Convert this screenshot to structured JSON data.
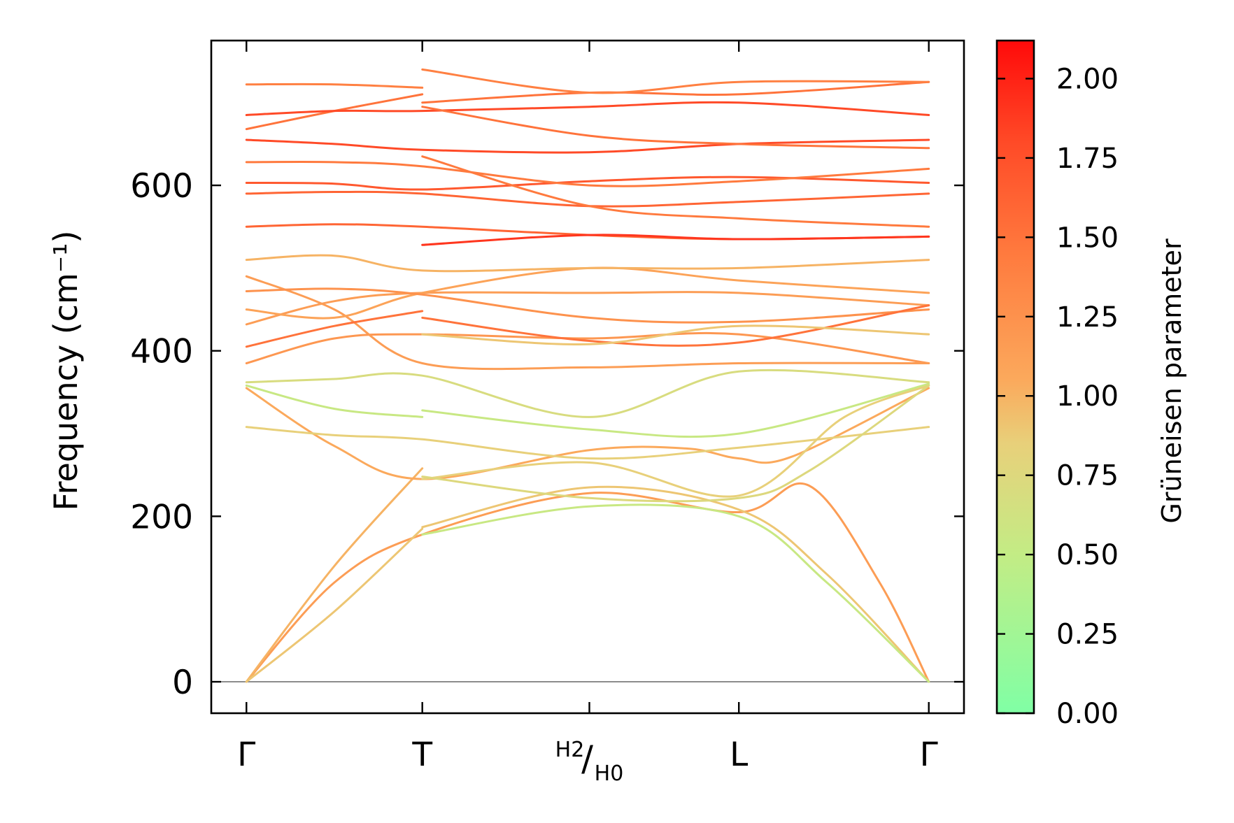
{
  "chart_data": {
    "type": "line",
    "ylabel": "Frequency (cm⁻¹)",
    "ylim": [
      -38,
      775
    ],
    "yticks": [
      0,
      200,
      400,
      600
    ],
    "grid": false,
    "x_ticks": [
      {
        "label": "Γ",
        "pos": 0.0
      },
      {
        "label": "T",
        "pos": 1.0
      },
      {
        "label": "H2/H0",
        "sub_top": "H",
        "sub_top_index": "2",
        "sub_bottom": "H",
        "sub_bottom_index": "0",
        "pos": 1.95
      },
      {
        "label": "L",
        "pos": 2.8
      },
      {
        "label": "Γ",
        "pos": 3.88
      }
    ],
    "xlim": [
      -0.2,
      4.08
    ],
    "zero_line": 0,
    "colorbar": {
      "title": "Grüneisen parameter",
      "min": 0.0,
      "max": 2.12,
      "ticks": [
        "0.00",
        "0.25",
        "0.50",
        "0.75",
        "1.00",
        "1.25",
        "1.50",
        "1.75",
        "2.00"
      ],
      "tick_values": [
        0.0,
        0.25,
        0.5,
        0.75,
        1.0,
        1.25,
        1.5,
        1.75,
        2.0
      ],
      "colormap": [
        {
          "v": 0.0,
          "color": "#80ffa5"
        },
        {
          "v": 0.5,
          "color": "#c3ec85"
        },
        {
          "v": 0.85,
          "color": "#e8d07a"
        },
        {
          "v": 1.05,
          "color": "#fba95c"
        },
        {
          "v": 1.45,
          "color": "#ff7a3e"
        },
        {
          "v": 1.8,
          "color": "#ff4a27"
        },
        {
          "v": 2.12,
          "color": "#ff0a0a"
        }
      ]
    },
    "series": [
      {
        "g": 1.15,
        "segments": [
          [
            [
              0,
              0
            ],
            [
              0.5,
              120
            ],
            [
              1,
              178
            ],
            [
              1.95,
              228
            ],
            [
              2.8,
              205
            ],
            [
              3.2,
              237
            ],
            [
              3.6,
              120
            ],
            [
              3.88,
              0
            ]
          ]
        ]
      },
      {
        "g": 1.0,
        "segments": [
          [
            [
              0,
              0
            ],
            [
              0.5,
              140
            ],
            [
              1,
              258
            ]
          ]
        ]
      },
      {
        "g": 0.9,
        "segments": [
          [
            [
              0,
              0
            ],
            [
              0.5,
              85
            ],
            [
              1,
              185
            ]
          ],
          [
            [
              1,
              187
            ],
            [
              1.95,
              235
            ],
            [
              2.8,
              208
            ],
            [
              3.3,
              130
            ],
            [
              3.88,
              0
            ]
          ]
        ]
      },
      {
        "g": 0.55,
        "segments": [
          [
            [
              1,
              178
            ],
            [
              1.95,
              212
            ],
            [
              2.8,
              200
            ],
            [
              3.3,
              120
            ],
            [
              3.88,
              0
            ]
          ]
        ]
      },
      {
        "g": 1.05,
        "segments": [
          [
            [
              0,
              355
            ],
            [
              0.5,
              285
            ],
            [
              1,
              245
            ],
            [
              1.95,
              280
            ],
            [
              2.5,
              282
            ],
            [
              2.8,
              270
            ],
            [
              3.1,
              272
            ],
            [
              3.88,
              355
            ]
          ]
        ]
      },
      {
        "g": 0.85,
        "segments": [
          [
            [
              0,
              308
            ],
            [
              0.5,
              298
            ],
            [
              1,
              293
            ],
            [
              1.95,
              270
            ],
            [
              2.8,
              283
            ],
            [
              3.88,
              308
            ]
          ]
        ]
      },
      {
        "g": 0.55,
        "segments": [
          [
            [
              0,
              358
            ],
            [
              0.5,
              330
            ],
            [
              1,
              320
            ]
          ],
          [
            [
              1,
              328
            ],
            [
              1.95,
              305
            ],
            [
              2.8,
              300
            ],
            [
              3.88,
              360
            ]
          ]
        ]
      },
      {
        "g": 0.7,
        "segments": [
          [
            [
              0,
              362
            ],
            [
              0.5,
              366
            ],
            [
              1,
              370
            ],
            [
              1.95,
              320
            ],
            [
              2.8,
              375
            ],
            [
              3.88,
              362
            ]
          ]
        ]
      },
      {
        "g": 0.85,
        "segments": [
          [
            [
              1,
              245
            ],
            [
              1.95,
              265
            ],
            [
              2.8,
              225
            ],
            [
              3.4,
              320
            ],
            [
              3.88,
              358
            ]
          ]
        ]
      },
      {
        "g": 0.75,
        "segments": [
          [
            [
              1,
              248
            ],
            [
              1.95,
              222
            ],
            [
              2.8,
              222
            ],
            [
              3.2,
              255
            ],
            [
              3.88,
              358
            ]
          ]
        ]
      },
      {
        "g": 1.2,
        "segments": [
          [
            [
              0,
              385
            ],
            [
              0.5,
              415
            ],
            [
              1,
              420
            ],
            [
              1.95,
              415
            ],
            [
              2.8,
              420
            ],
            [
              3.88,
              385
            ]
          ]
        ]
      },
      {
        "g": 1.15,
        "segments": [
          [
            [
              0,
              490
            ],
            [
              0.5,
              450
            ],
            [
              1,
              385
            ],
            [
              1.95,
              380
            ],
            [
              2.8,
              385
            ],
            [
              3.88,
              385
            ]
          ]
        ]
      },
      {
        "g": 1.15,
        "segments": [
          [
            [
              0,
              432
            ],
            [
              0.5,
              460
            ],
            [
              1,
              470
            ],
            [
              1.95,
              470
            ],
            [
              2.8,
              470
            ],
            [
              3.88,
              455
            ]
          ]
        ]
      },
      {
        "g": 1.1,
        "segments": [
          [
            [
              0,
              450
            ],
            [
              0.5,
              440
            ],
            [
              1,
              470
            ],
            [
              1.95,
              500
            ],
            [
              2.8,
              485
            ],
            [
              3.88,
              470
            ]
          ]
        ]
      },
      {
        "g": 1.25,
        "segments": [
          [
            [
              0,
              472
            ],
            [
              0.5,
              475
            ],
            [
              1,
              468
            ],
            [
              1.95,
              440
            ],
            [
              2.8,
              435
            ],
            [
              3.88,
              450
            ]
          ]
        ]
      },
      {
        "g": 1.5,
        "segments": [
          [
            [
              0,
              405
            ],
            [
              0.5,
              430
            ],
            [
              1,
              448
            ]
          ],
          [
            [
              1,
              440
            ],
            [
              1.95,
              412
            ],
            [
              2.8,
              410
            ],
            [
              3.88,
              455
            ]
          ]
        ]
      },
      {
        "g": 1.0,
        "segments": [
          [
            [
              0,
              510
            ],
            [
              0.5,
              515
            ],
            [
              1,
              497
            ],
            [
              1.95,
              500
            ],
            [
              2.8,
              500
            ],
            [
              3.88,
              510
            ]
          ]
        ]
      },
      {
        "g": 0.9,
        "segments": [
          [
            [
              1,
              420
            ],
            [
              1.95,
              408
            ],
            [
              2.8,
              430
            ],
            [
              3.88,
              420
            ]
          ]
        ]
      },
      {
        "g": 1.6,
        "segments": [
          [
            [
              0,
              550
            ],
            [
              0.5,
              553
            ],
            [
              1,
              550
            ],
            [
              1.95,
              540
            ],
            [
              2.8,
              535
            ],
            [
              3.88,
              538
            ]
          ]
        ]
      },
      {
        "g": 1.9,
        "segments": [
          [
            [
              1,
              528
            ],
            [
              1.95,
              540
            ],
            [
              2.8,
              535
            ],
            [
              3.88,
              538
            ]
          ]
        ]
      },
      {
        "g": 1.6,
        "segments": [
          [
            [
              0,
              590
            ],
            [
              0.5,
              592
            ],
            [
              1,
              590
            ],
            [
              1.95,
              575
            ],
            [
              2.8,
              580
            ],
            [
              3.88,
              590
            ]
          ]
        ]
      },
      {
        "g": 1.7,
        "segments": [
          [
            [
              0,
              603
            ],
            [
              0.5,
              602
            ],
            [
              1,
              595
            ],
            [
              1.95,
              605
            ],
            [
              2.8,
              610
            ],
            [
              3.88,
              603
            ]
          ]
        ]
      },
      {
        "g": 1.45,
        "segments": [
          [
            [
              0,
              628
            ],
            [
              0.5,
              628
            ],
            [
              1,
              623
            ],
            [
              1.95,
              600
            ],
            [
              2.8,
              605
            ],
            [
              3.88,
              620
            ]
          ]
        ]
      },
      {
        "g": 1.45,
        "segments": [
          [
            [
              1,
              635
            ],
            [
              1.95,
              575
            ],
            [
              2.8,
              560
            ],
            [
              3.88,
              550
            ]
          ]
        ]
      },
      {
        "g": 1.8,
        "segments": [
          [
            [
              0,
              655
            ],
            [
              0.5,
              650
            ],
            [
              1,
              643
            ],
            [
              1.95,
              640
            ],
            [
              2.8,
              650
            ],
            [
              3.88,
              655
            ]
          ]
        ]
      },
      {
        "g": 1.5,
        "segments": [
          [
            [
              0,
              668
            ],
            [
              0.5,
              690
            ],
            [
              1,
              710
            ]
          ],
          [
            [
              1,
              700
            ],
            [
              1.95,
              712
            ],
            [
              2.8,
              710
            ],
            [
              3.88,
              725
            ]
          ]
        ]
      },
      {
        "g": 1.8,
        "segments": [
          [
            [
              0,
              685
            ],
            [
              0.5,
              690
            ],
            [
              1,
              690
            ],
            [
              1.95,
              695
            ],
            [
              2.8,
              700
            ],
            [
              3.88,
              685
            ]
          ]
        ]
      },
      {
        "g": 1.4,
        "segments": [
          [
            [
              0,
              722
            ],
            [
              0.5,
              722
            ],
            [
              1,
              718
            ]
          ],
          [
            [
              1,
              740
            ],
            [
              1.95,
              712
            ],
            [
              2.8,
              725
            ],
            [
              3.88,
              725
            ]
          ]
        ]
      },
      {
        "g": 1.5,
        "segments": [
          [
            [
              1,
              695
            ],
            [
              1.95,
              660
            ],
            [
              2.8,
              650
            ],
            [
              3.88,
              645
            ]
          ]
        ]
      }
    ]
  }
}
